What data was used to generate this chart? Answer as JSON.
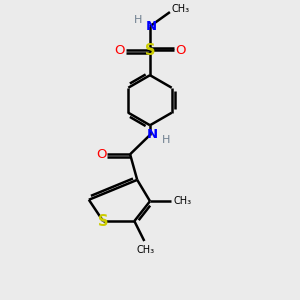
{
  "bg_color": "#ebebeb",
  "bond_color": "#000000",
  "bond_width": 1.8,
  "colors": {
    "N": "#0000ff",
    "O": "#ff0000",
    "S": "#cccc00",
    "H": "#708090",
    "C": "#000000"
  },
  "layout": {
    "xlim": [
      0,
      10
    ],
    "ylim": [
      0,
      10.5
    ]
  }
}
